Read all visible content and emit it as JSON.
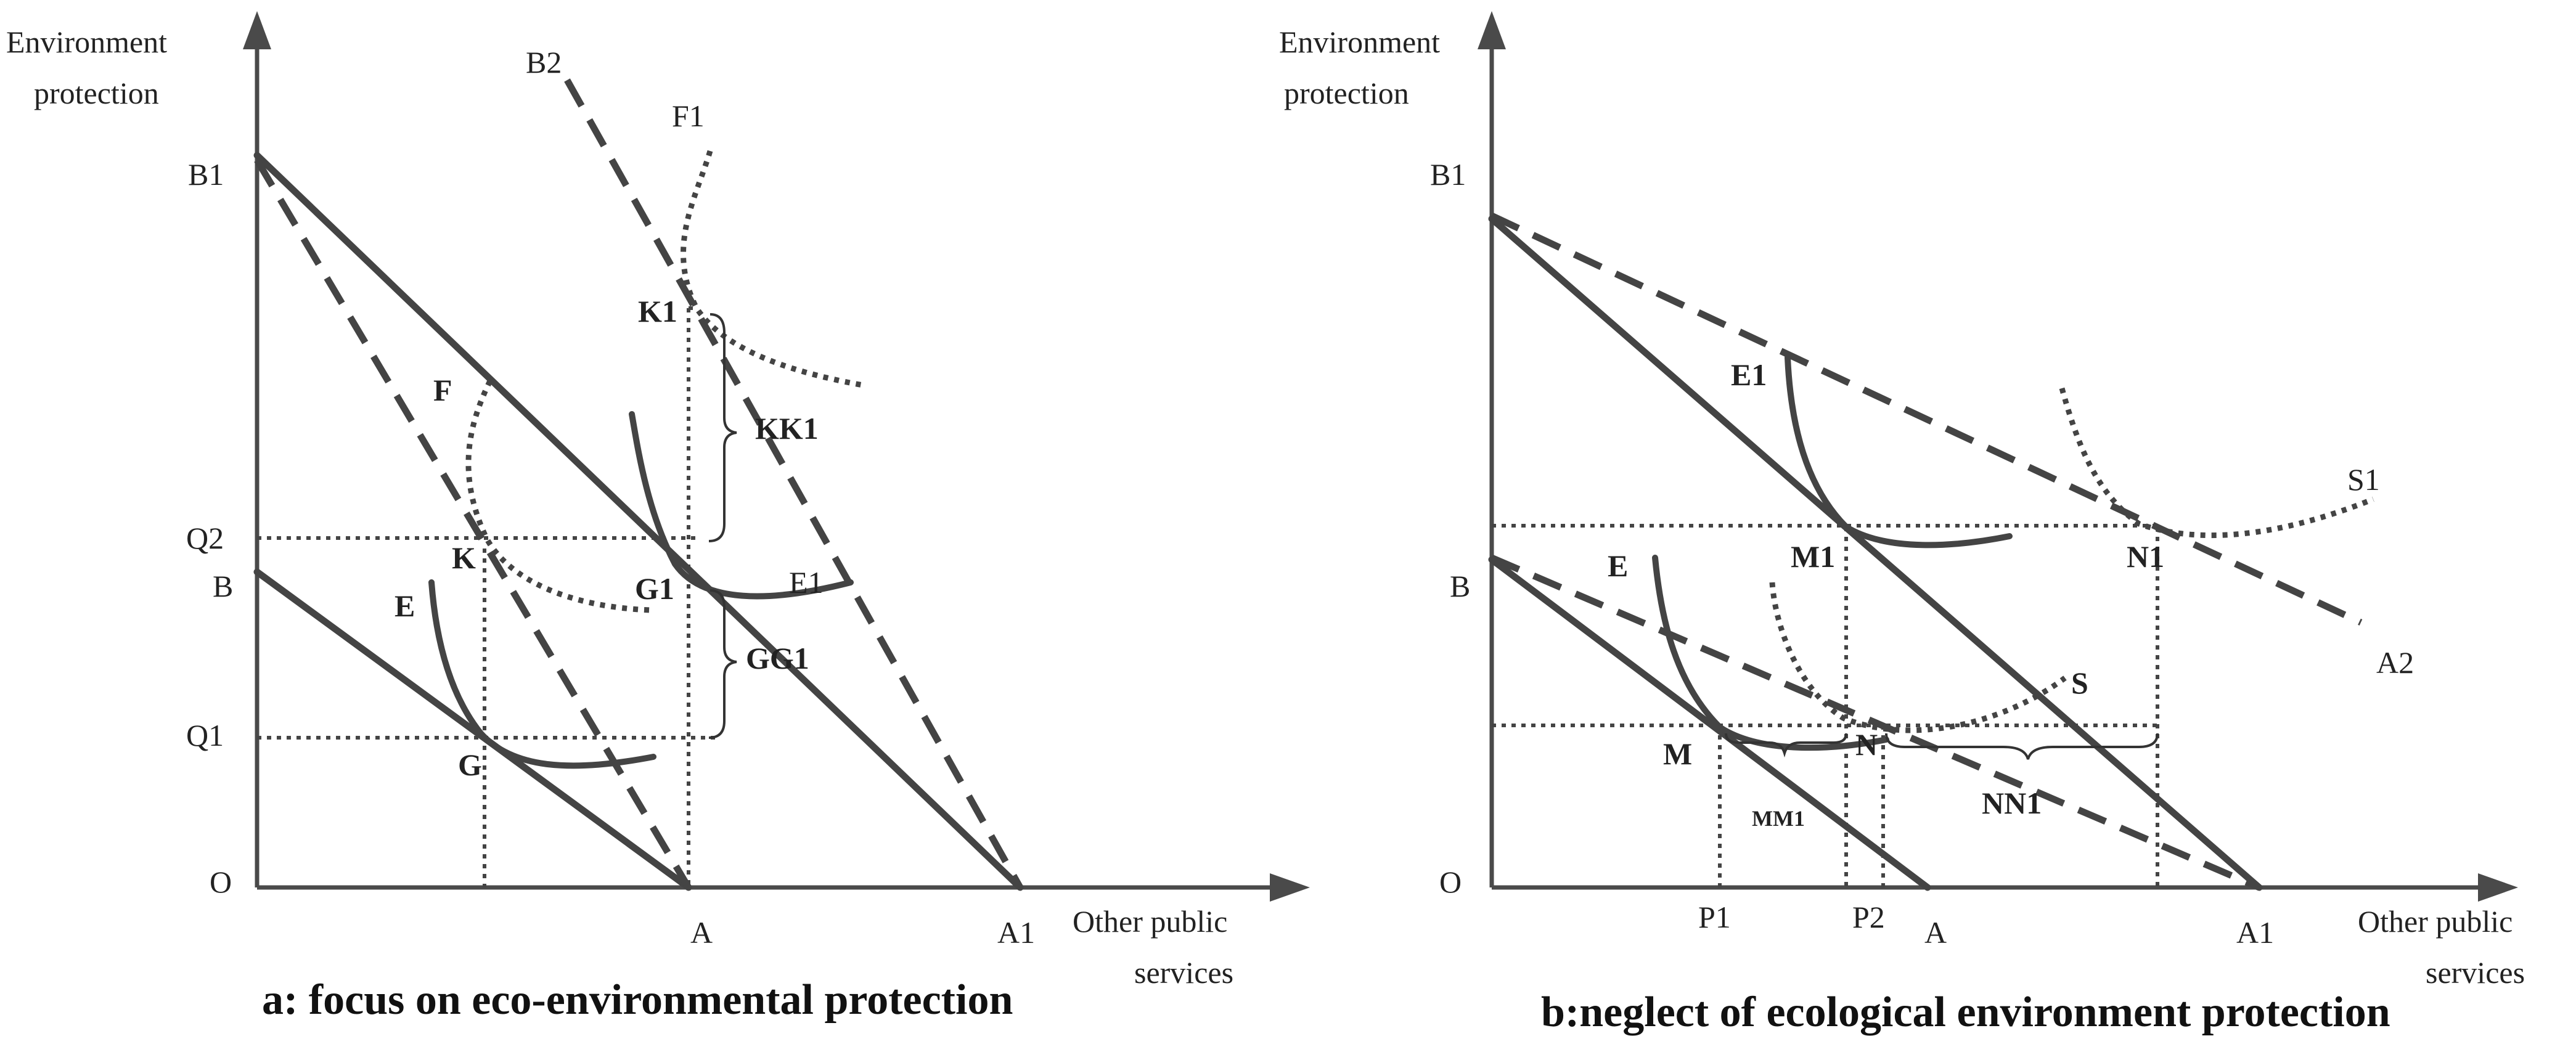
{
  "panel_a": {
    "y_axis_label_line1": "Environment",
    "y_axis_label_line2": "protection",
    "x_axis_label_line1": "Other public",
    "x_axis_label_line2": "services",
    "origin": "O",
    "points": {
      "B1": "B1",
      "B": "B",
      "Q2": "Q2",
      "Q1": "Q1",
      "A": "A",
      "A1": "A1",
      "B2": "B2",
      "F1": "F1",
      "K1": "K1",
      "F": "F",
      "K": "K",
      "G1": "G1",
      "E1": "E1",
      "E": "E",
      "G": "G"
    },
    "braces": {
      "KK1": "KK1",
      "GG1": "GG1"
    },
    "caption": "a: focus on eco-environmental protection"
  },
  "panel_b": {
    "y_axis_label_line1": "Environment",
    "y_axis_label_line2": "protection",
    "x_axis_label_line1": "Other public",
    "x_axis_label_line2": "services",
    "origin": "O",
    "points": {
      "B1": "B1",
      "B": "B",
      "E1": "E1",
      "S1": "S1",
      "M1": "M1",
      "N1": "N1",
      "A2": "A2",
      "E": "E",
      "S": "S",
      "M": "M",
      "N": "N",
      "P1": "P1",
      "P2": "P2",
      "A": "A",
      "A1": "A1"
    },
    "braces": {
      "MM1": "MM1",
      "NN1": "NN1"
    },
    "caption": "b:neglect of ecological environment protection"
  }
}
